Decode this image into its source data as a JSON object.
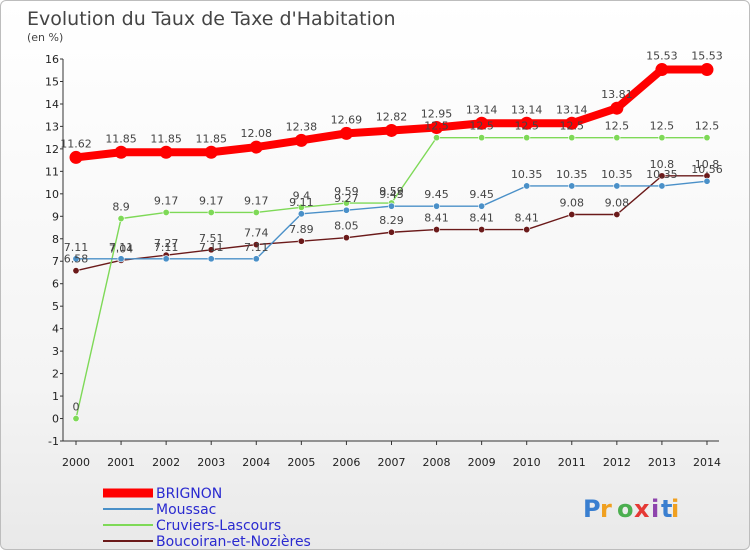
{
  "chart_data": {
    "type": "line",
    "title": "Evolution du Taux de Taxe d'Habitation",
    "subtitle": "(en %)",
    "xlabel": "",
    "ylabel": "",
    "x": [
      "2000",
      "2001",
      "2002",
      "2003",
      "2004",
      "2005",
      "2006",
      "2007",
      "2008",
      "2009",
      "2010",
      "2011",
      "2012",
      "2013",
      "2014"
    ],
    "ylim": [
      -1,
      16
    ],
    "yticks": [
      "-1",
      "0",
      "1",
      "2",
      "3",
      "4",
      "5",
      "6",
      "7",
      "8",
      "9",
      "10",
      "11",
      "12",
      "13",
      "14",
      "15",
      "16"
    ],
    "grid": false,
    "legend_position": "bottom-left",
    "series": [
      {
        "name": "BRIGNON",
        "color": "#ff0000",
        "values": [
          11.62,
          11.85,
          11.85,
          11.85,
          12.08,
          12.38,
          12.69,
          12.82,
          12.95,
          13.14,
          13.14,
          13.14,
          13.81,
          15.53,
          15.53
        ],
        "labels": [
          "11.62",
          "11.85",
          "11.85",
          "11.85",
          "12.08",
          "12.38",
          "12.69",
          "12.82",
          "12.95",
          "13.14",
          "13.14",
          "13.14",
          "13.81",
          "15.53",
          "15.53"
        ]
      },
      {
        "name": "Moussac",
        "color": "#4a90c8",
        "values": [
          7.11,
          7.11,
          7.11,
          7.11,
          7.11,
          9.11,
          9.27,
          9.45,
          9.45,
          9.45,
          10.35,
          10.35,
          10.35,
          10.35,
          10.56
        ],
        "labels": [
          "7.11",
          "7.11",
          "7.11",
          "7.11",
          "7.11",
          "9.11",
          "9.27",
          "9.45",
          "9.45",
          "9.45",
          "10.35",
          "10.35",
          "10.35",
          "10.35",
          "10.56"
        ]
      },
      {
        "name": "Cruviers-Lascours",
        "color": "#7ed957",
        "values": [
          0,
          8.9,
          9.17,
          9.17,
          9.17,
          9.4,
          9.59,
          9.59,
          12.5,
          12.5,
          12.5,
          12.5,
          12.5,
          12.5,
          12.5
        ],
        "labels": [
          "0",
          "8.9",
          "9.17",
          "9.17",
          "9.17",
          "9.4",
          "9.59",
          "9.59",
          "12.5",
          "12.5",
          "12.5",
          "12.5",
          "12.5",
          "12.5",
          "12.5"
        ]
      },
      {
        "name": "Boucoiran-et-Nozières",
        "color": "#6b1a1a",
        "values": [
          6.58,
          7.04,
          7.27,
          7.51,
          7.74,
          7.89,
          8.05,
          8.29,
          8.41,
          8.41,
          8.41,
          9.08,
          9.08,
          10.8,
          10.8
        ],
        "labels": [
          "6.58",
          "7.04",
          "7.27",
          "7.51",
          "7.74",
          "7.89",
          "8.05",
          "8.29",
          "8.41",
          "8.41",
          "8.41",
          "9.08",
          "9.08",
          "10.8",
          "10.8"
        ]
      }
    ]
  },
  "logo": {
    "text": "Proxiti",
    "letter_colors": [
      "#3a7fd0",
      "#f0a020",
      "#4caf50",
      "#e53935",
      "#8e44ad",
      "#3a7fd0",
      "#f0a020"
    ]
  }
}
